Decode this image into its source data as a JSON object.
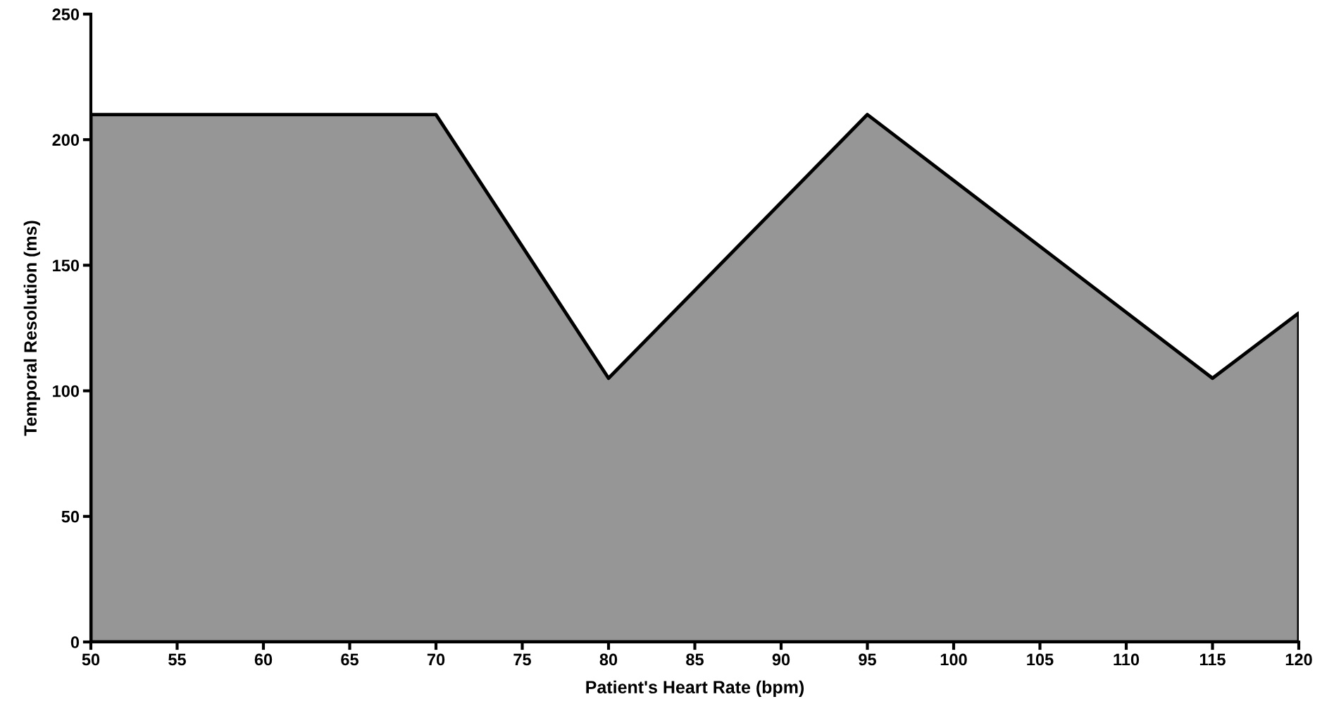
{
  "chart_data": {
    "type": "area",
    "xlabel": "Patient's Heart Rate (bpm)",
    "ylabel": "Temporal Resolution (ms)",
    "x": [
      50,
      70,
      80,
      95,
      115,
      120
    ],
    "series": [
      {
        "color": "#969696",
        "values": [
          210,
          210,
          105,
          210,
          105,
          131
        ]
      }
    ],
    "xlim": [
      50,
      120
    ],
    "xticks": [
      50,
      55,
      60,
      65,
      70,
      75,
      80,
      85,
      90,
      95,
      100,
      105,
      110,
      115,
      120
    ],
    "ylim": [
      0,
      250
    ],
    "yticks": [
      0,
      50,
      100,
      150,
      200,
      250
    ],
    "grid": false,
    "legend": false
  }
}
